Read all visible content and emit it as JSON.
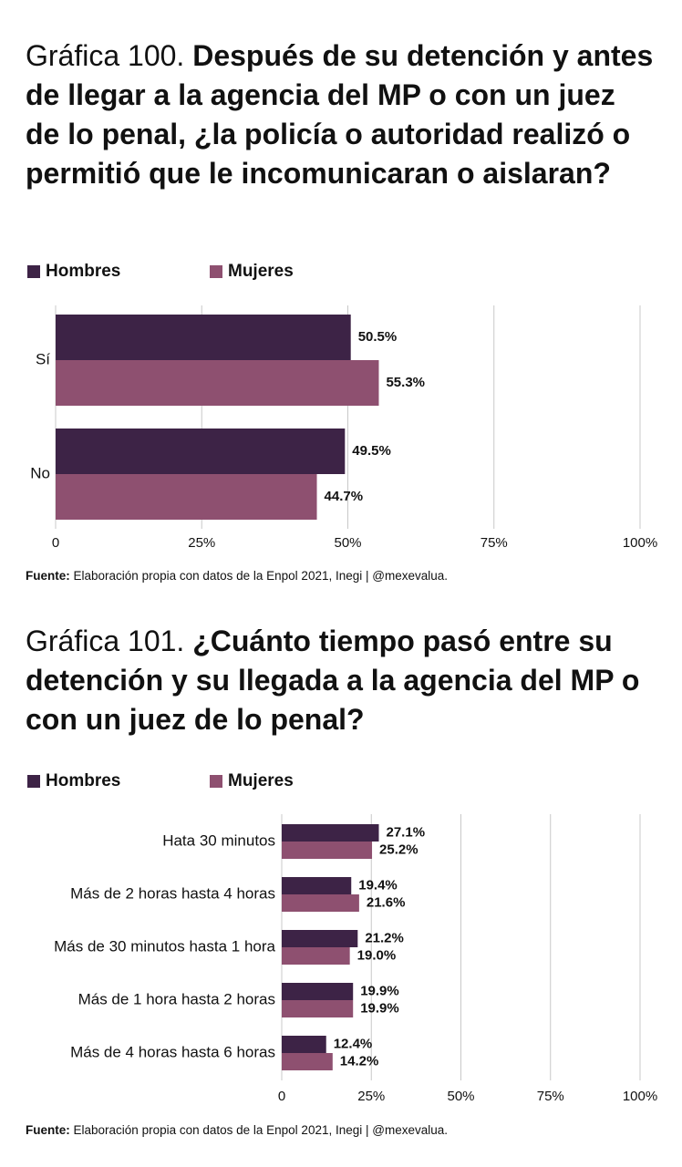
{
  "chart_data": [
    {
      "type": "barh",
      "figure_label": "Gráfica 100.",
      "title": "Después de su detención y antes de llegar a la agencia del MP o con un juez de lo penal, ¿la policía o autoridad realizó o permitió que le incomunicaran o aislaran?",
      "categories": [
        "Sí",
        "No"
      ],
      "series": [
        {
          "name": "Hombres",
          "color": "#3d2346",
          "values": [
            50.5,
            49.5
          ],
          "value_labels": [
            "50.5%",
            "49.5%"
          ]
        },
        {
          "name": "Mujeres",
          "color": "#8e5070",
          "values": [
            55.3,
            44.7
          ],
          "value_labels": [
            "55.3%",
            "44.7%"
          ]
        }
      ],
      "xlim": [
        0,
        100
      ],
      "xticks": [
        0,
        {
          "value": 25,
          "label": "25%"
        },
        {
          "value": 50,
          "label": "50%"
        },
        {
          "value": 75,
          "label": "75%"
        },
        {
          "value": 100,
          "label": "100%"
        }
      ],
      "grid": true,
      "legend": "top",
      "source_label": "Fuente:",
      "source": "Elaboración propia con datos de la Enpol 2021, Inegi | @mexevalua."
    },
    {
      "type": "barh",
      "figure_label": "Gráfica 101.",
      "title": "¿Cuánto tiempo pasó entre su detención y su llegada a la agencia del MP o con un juez de lo penal?",
      "categories": [
        "Hata 30 minutos",
        "Más de 2 horas hasta 4 horas",
        "Más de 30 minutos hasta 1 hora",
        "Más de 1 hora hasta 2 horas",
        "Más de 4 horas hasta 6 horas"
      ],
      "series": [
        {
          "name": "Hombres",
          "color": "#3d2346",
          "values": [
            27.1,
            19.4,
            21.2,
            19.9,
            12.4
          ],
          "value_labels": [
            "27.1%",
            "19.4%",
            "21.2%",
            "19.9%",
            "12.4%"
          ]
        },
        {
          "name": "Mujeres",
          "color": "#8e5070",
          "values": [
            25.2,
            21.6,
            19.0,
            19.9,
            14.2
          ],
          "value_labels": [
            "25.2%",
            "21.6%",
            "19.0%",
            "19.9%",
            "14.2%"
          ]
        }
      ],
      "xlim": [
        0,
        100
      ],
      "xticks": [
        0,
        {
          "value": 25,
          "label": "25%"
        },
        {
          "value": 50,
          "label": "50%"
        },
        {
          "value": 75,
          "label": "75%"
        },
        {
          "value": 100,
          "label": "100%"
        }
      ],
      "grid": true,
      "legend": "top",
      "source_label": "Fuente:",
      "source": "Elaboración propia con datos de la Enpol 2021, Inegi | @mexevalua."
    }
  ]
}
